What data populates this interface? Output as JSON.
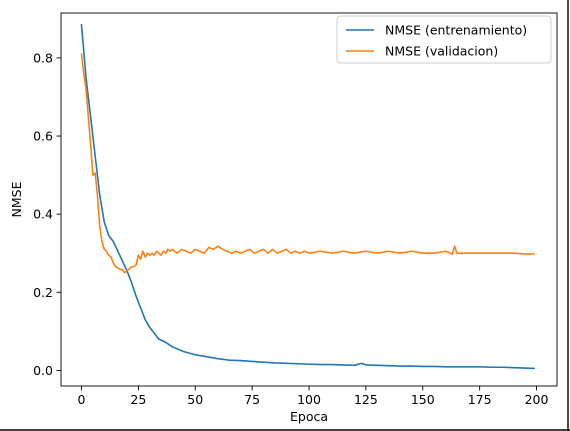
{
  "chart_data": {
    "type": "line",
    "xlabel": "Epoca",
    "ylabel": "NMSE",
    "xlim": [
      -9,
      209
    ],
    "ylim": [
      -0.04,
      0.915
    ],
    "xticks": [
      0,
      25,
      50,
      75,
      100,
      125,
      150,
      175,
      200
    ],
    "xtick_labels": [
      "0",
      "25",
      "50",
      "75",
      "100",
      "125",
      "150",
      "175",
      "200"
    ],
    "yticks": [
      0.0,
      0.2,
      0.4,
      0.6,
      0.8
    ],
    "ytick_labels": [
      "0.0",
      "0.2",
      "0.4",
      "0.6",
      "0.8"
    ],
    "grid": false,
    "legend_position": "top-right",
    "series": [
      {
        "name": "NMSE (entrenamiento)",
        "color": "#1f77b4",
        "x": [
          0,
          2,
          4,
          6,
          8,
          10,
          12,
          14,
          16,
          18,
          20,
          22,
          24,
          26,
          28,
          30,
          32,
          34,
          36,
          38,
          40,
          45,
          50,
          55,
          60,
          65,
          70,
          75,
          80,
          85,
          90,
          95,
          100,
          105,
          110,
          115,
          120,
          123,
          125,
          130,
          135,
          140,
          145,
          150,
          155,
          160,
          165,
          170,
          175,
          180,
          185,
          190,
          195,
          199
        ],
        "values": [
          0.885,
          0.75,
          0.65,
          0.55,
          0.45,
          0.38,
          0.345,
          0.33,
          0.305,
          0.28,
          0.255,
          0.225,
          0.19,
          0.16,
          0.13,
          0.11,
          0.095,
          0.08,
          0.075,
          0.068,
          0.06,
          0.048,
          0.04,
          0.035,
          0.03,
          0.026,
          0.025,
          0.023,
          0.021,
          0.019,
          0.018,
          0.017,
          0.016,
          0.015,
          0.015,
          0.014,
          0.013,
          0.018,
          0.014,
          0.013,
          0.012,
          0.011,
          0.011,
          0.01,
          0.01,
          0.009,
          0.009,
          0.009,
          0.009,
          0.008,
          0.008,
          0.007,
          0.006,
          0.005
        ]
      },
      {
        "name": "NMSE (validacion)",
        "color": "#ff7f0e",
        "x": [
          0,
          1,
          2,
          3,
          4,
          5,
          6,
          7,
          8,
          9,
          10,
          11,
          12,
          13,
          14,
          15,
          16,
          17,
          18,
          19,
          20,
          21,
          22,
          23,
          24,
          25,
          26,
          27,
          28,
          29,
          30,
          31,
          32,
          33,
          34,
          35,
          36,
          37,
          38,
          39,
          40,
          42,
          44,
          46,
          48,
          50,
          52,
          54,
          56,
          58,
          60,
          62,
          64,
          66,
          68,
          70,
          72,
          74,
          76,
          78,
          80,
          82,
          84,
          86,
          88,
          90,
          92,
          94,
          96,
          98,
          100,
          105,
          110,
          115,
          120,
          125,
          130,
          135,
          140,
          145,
          150,
          155,
          160,
          163,
          164,
          165,
          166,
          170,
          175,
          180,
          185,
          190,
          195,
          199
        ],
        "values": [
          0.81,
          0.76,
          0.72,
          0.65,
          0.58,
          0.5,
          0.505,
          0.45,
          0.37,
          0.33,
          0.31,
          0.305,
          0.295,
          0.29,
          0.275,
          0.265,
          0.262,
          0.258,
          0.258,
          0.25,
          0.255,
          0.26,
          0.265,
          0.265,
          0.27,
          0.295,
          0.285,
          0.305,
          0.29,
          0.3,
          0.295,
          0.3,
          0.295,
          0.305,
          0.3,
          0.295,
          0.305,
          0.3,
          0.31,
          0.305,
          0.31,
          0.3,
          0.31,
          0.305,
          0.3,
          0.31,
          0.305,
          0.3,
          0.315,
          0.31,
          0.318,
          0.31,
          0.305,
          0.3,
          0.305,
          0.3,
          0.305,
          0.31,
          0.3,
          0.305,
          0.31,
          0.3,
          0.31,
          0.3,
          0.305,
          0.31,
          0.3,
          0.305,
          0.3,
          0.305,
          0.3,
          0.305,
          0.3,
          0.305,
          0.3,
          0.305,
          0.3,
          0.305,
          0.3,
          0.305,
          0.3,
          0.3,
          0.305,
          0.298,
          0.318,
          0.3,
          0.3,
          0.3,
          0.3,
          0.3,
          0.3,
          0.3,
          0.298,
          0.298
        ]
      }
    ]
  }
}
